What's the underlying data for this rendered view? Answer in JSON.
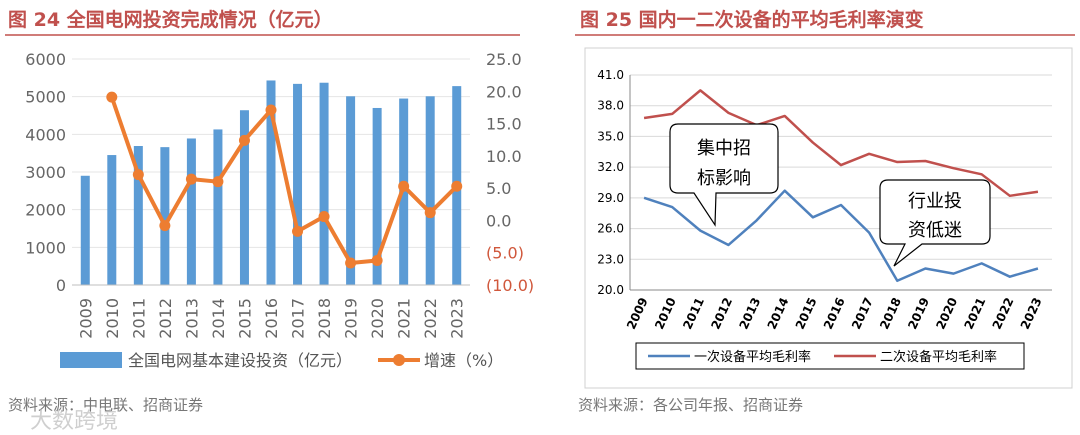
{
  "chart_data": [
    {
      "type": "bar+line",
      "title": "图 24 全国电网投资完成情况（亿元）",
      "categories": [
        "2009",
        "2010",
        "2011",
        "2012",
        "2013",
        "2014",
        "2015",
        "2016",
        "2017",
        "2018",
        "2019",
        "2020",
        "2021",
        "2022",
        "2023"
      ],
      "series": [
        {
          "name": "全国电网基本建设投资（亿元）",
          "type": "bar",
          "axis": "left",
          "color": "#5b9bd5",
          "values": [
            2900,
            3450,
            3690,
            3660,
            3890,
            4130,
            4640,
            5430,
            5340,
            5370,
            5010,
            4700,
            4950,
            5010,
            5280
          ]
        },
        {
          "name": "增速（%）",
          "type": "line",
          "axis": "right",
          "color": "#ed7d31",
          "values": [
            null,
            19.1,
            7.1,
            -0.8,
            6.4,
            6.0,
            12.4,
            17.1,
            -1.7,
            0.6,
            -6.6,
            -6.2,
            5.3,
            1.2,
            5.3
          ]
        }
      ],
      "ylim": [
        0,
        6000
      ],
      "yticks": [
        "0",
        "1000",
        "2000",
        "3000",
        "4000",
        "5000",
        "6000"
      ],
      "y2lim": [
        -10,
        25
      ],
      "y2ticks": [
        "(10.0)",
        "(5.0)",
        "0.0",
        "5.0",
        "10.0",
        "15.0",
        "20.0",
        "25.0"
      ],
      "legend": "bottom",
      "source": "资料来源：中电联、招商证券"
    },
    {
      "type": "line",
      "title": "图 25 国内一二次设备的平均毛利率演变",
      "categories": [
        "2009",
        "2010",
        "2011",
        "2012",
        "2013",
        "2014",
        "2015",
        "2016",
        "2017",
        "2018",
        "2019",
        "2020",
        "2021",
        "2022",
        "2023"
      ],
      "series": [
        {
          "name": "一次设备平均毛利率",
          "color": "#4f81bd",
          "values": [
            29.0,
            28.1,
            25.8,
            24.4,
            26.8,
            29.7,
            27.1,
            28.3,
            25.6,
            20.9,
            22.1,
            21.6,
            22.6,
            21.3,
            22.1
          ]
        },
        {
          "name": "二次设备平均毛利率",
          "color": "#c0504d",
          "values": [
            36.8,
            37.2,
            39.5,
            37.3,
            36.1,
            37.0,
            34.4,
            32.2,
            33.3,
            32.5,
            32.6,
            31.9,
            31.3,
            29.2,
            29.6
          ]
        }
      ],
      "ylim": [
        20,
        41
      ],
      "yticks": [
        "20.0",
        "23.0",
        "26.0",
        "29.0",
        "32.0",
        "35.0",
        "38.0",
        "41.0"
      ],
      "annotations": [
        {
          "line1": "集中招",
          "line2": "标影响"
        },
        {
          "line1": "行业投",
          "line2": "资低迷"
        }
      ],
      "legend": "bottom",
      "source": "资料来源：各公司年报、招商证券"
    }
  ],
  "watermark": "大数跨境"
}
